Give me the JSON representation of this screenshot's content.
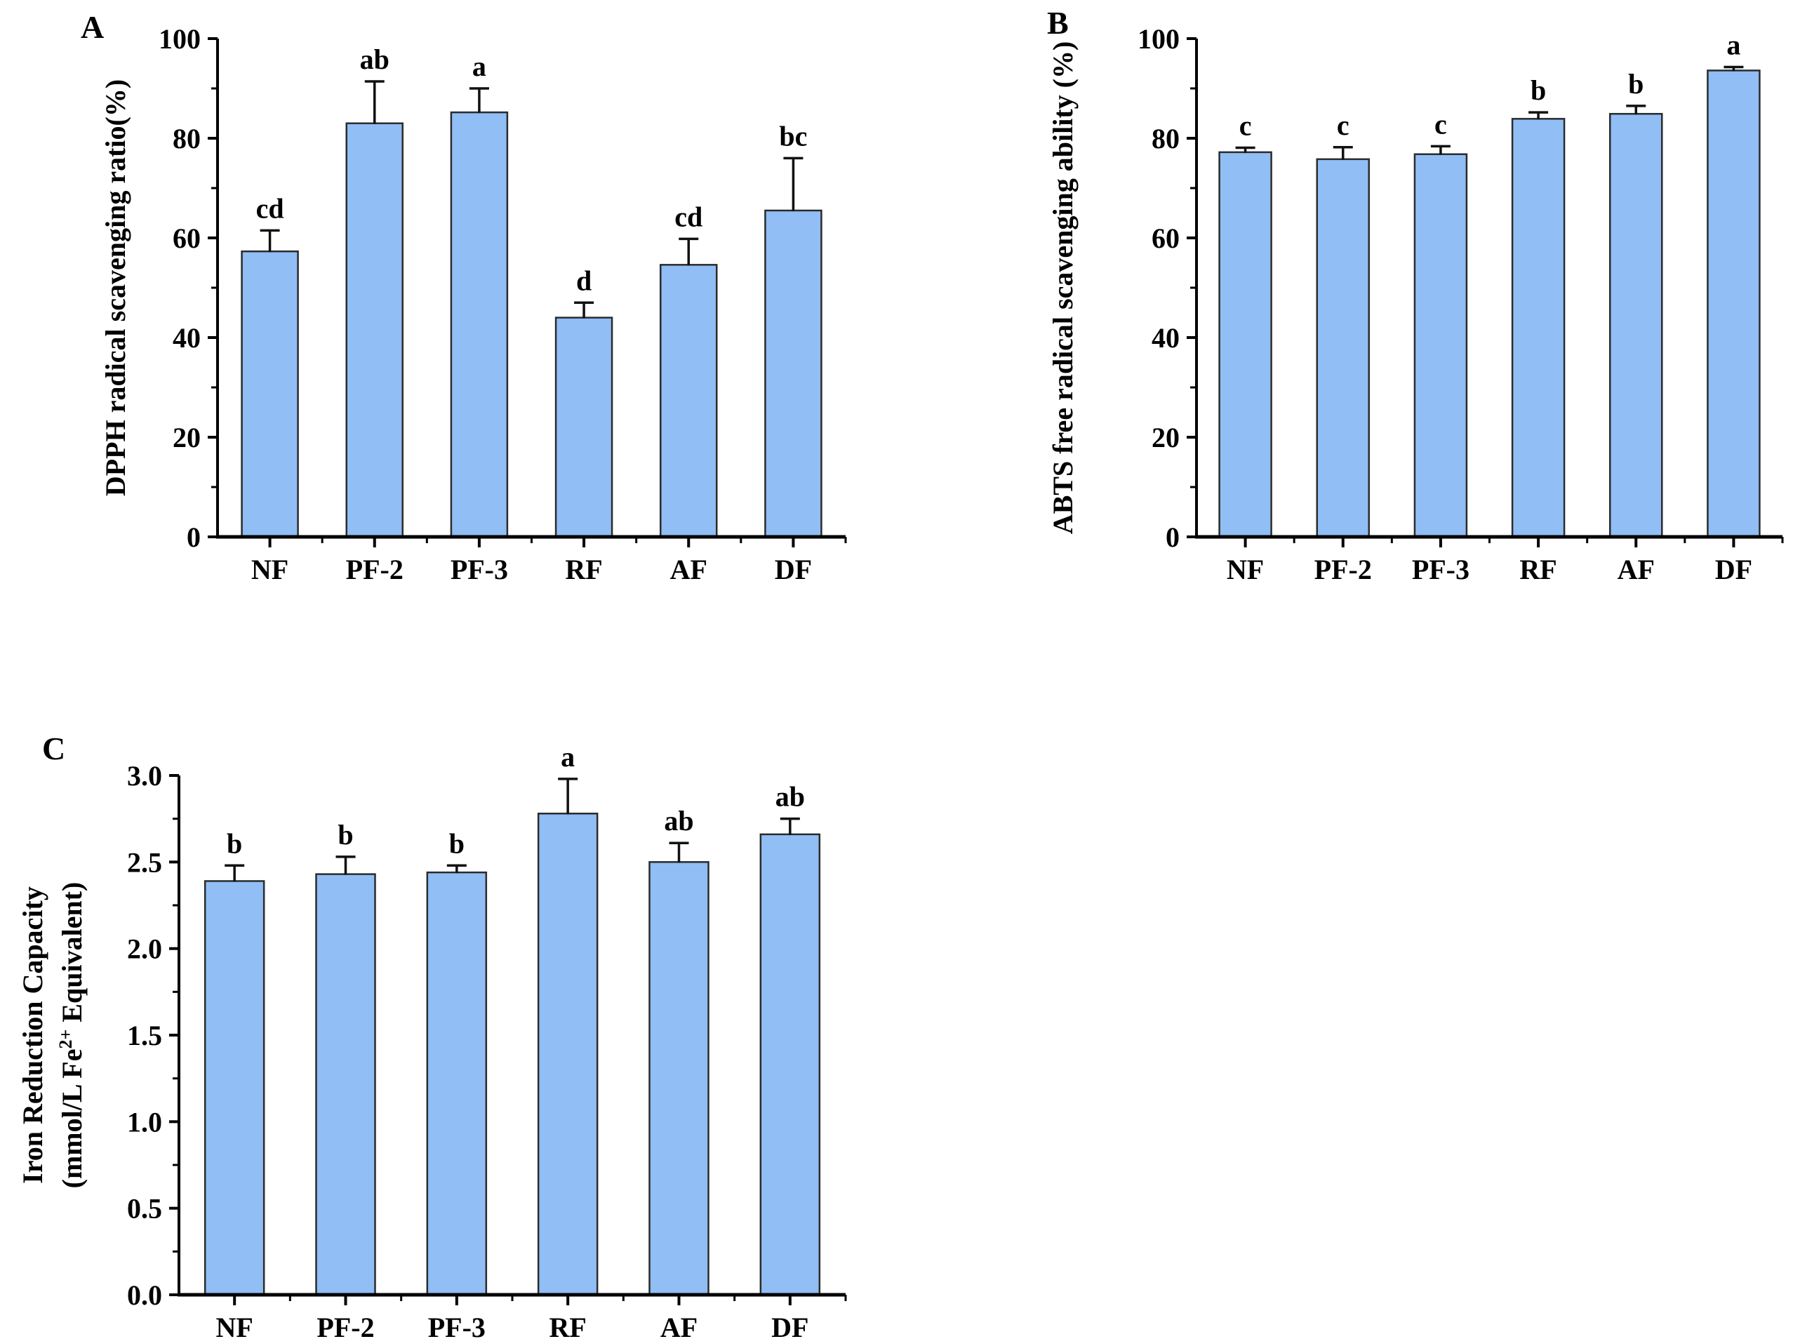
{
  "figure": {
    "background": "#ffffff",
    "text_color": "#000000",
    "panel_labels": [
      "A",
      "B",
      "C"
    ]
  },
  "chart_data": [
    {
      "panel_label": "A",
      "type": "bar",
      "title": "",
      "xlabel": "",
      "ylabel": "DPPH radical scavenging ratio(%)",
      "ylim": [
        0,
        100
      ],
      "ytick_step": 20,
      "ytick_minor_step": 10,
      "ytick_decimals": 0,
      "grid": false,
      "legend": "none",
      "categories": [
        "NF",
        "PF-2",
        "PF-3",
        "RF",
        "AF",
        "DF"
      ],
      "values": [
        57.3,
        83.0,
        85.2,
        44.0,
        54.6,
        65.5
      ],
      "errors": [
        4.2,
        8.4,
        4.8,
        3.0,
        5.2,
        10.5
      ],
      "sig_letters": [
        "cd",
        "ab",
        "a",
        "d",
        "cd",
        "bc"
      ],
      "bar_color": "#90BEF5",
      "bar_border": "#2b2b2b",
      "error_color": "#111111"
    },
    {
      "panel_label": "B",
      "type": "bar",
      "title": "",
      "xlabel": "",
      "ylabel": "ABTS free radical scavenging ability (%)",
      "ylim": [
        0,
        100
      ],
      "ytick_step": 20,
      "ytick_minor_step": 10,
      "ytick_decimals": 0,
      "grid": false,
      "legend": "none",
      "categories": [
        "NF",
        "PF-2",
        "PF-3",
        "RF",
        "AF",
        "DF"
      ],
      "values": [
        77.2,
        75.8,
        76.8,
        83.9,
        84.9,
        93.6
      ],
      "errors": [
        0.9,
        2.4,
        1.6,
        1.3,
        1.6,
        0.7
      ],
      "sig_letters": [
        "c",
        "c",
        "c",
        "b",
        "b",
        "a"
      ],
      "bar_color": "#90BEF5",
      "bar_border": "#2b2b2b",
      "error_color": "#111111"
    },
    {
      "panel_label": "C",
      "type": "bar",
      "title": "",
      "xlabel": "",
      "ylabel_lines": [
        "Iron Reduction Capacity",
        "(mmol/L Fe^{2+} Equivalent)"
      ],
      "ylim": [
        0,
        3.0
      ],
      "ytick_step": 0.5,
      "ytick_minor_step": 0.25,
      "ytick_decimals": 1,
      "grid": false,
      "legend": "none",
      "categories": [
        "NF",
        "PF-2",
        "PF-3",
        "RF",
        "AF",
        "DF"
      ],
      "values": [
        2.39,
        2.43,
        2.44,
        2.78,
        2.5,
        2.66
      ],
      "errors": [
        0.09,
        0.1,
        0.04,
        0.2,
        0.11,
        0.09
      ],
      "sig_letters": [
        "b",
        "b",
        "b",
        "a",
        "ab",
        "ab"
      ],
      "bar_color": "#90BEF5",
      "bar_border": "#2b2b2b",
      "error_color": "#111111"
    }
  ]
}
